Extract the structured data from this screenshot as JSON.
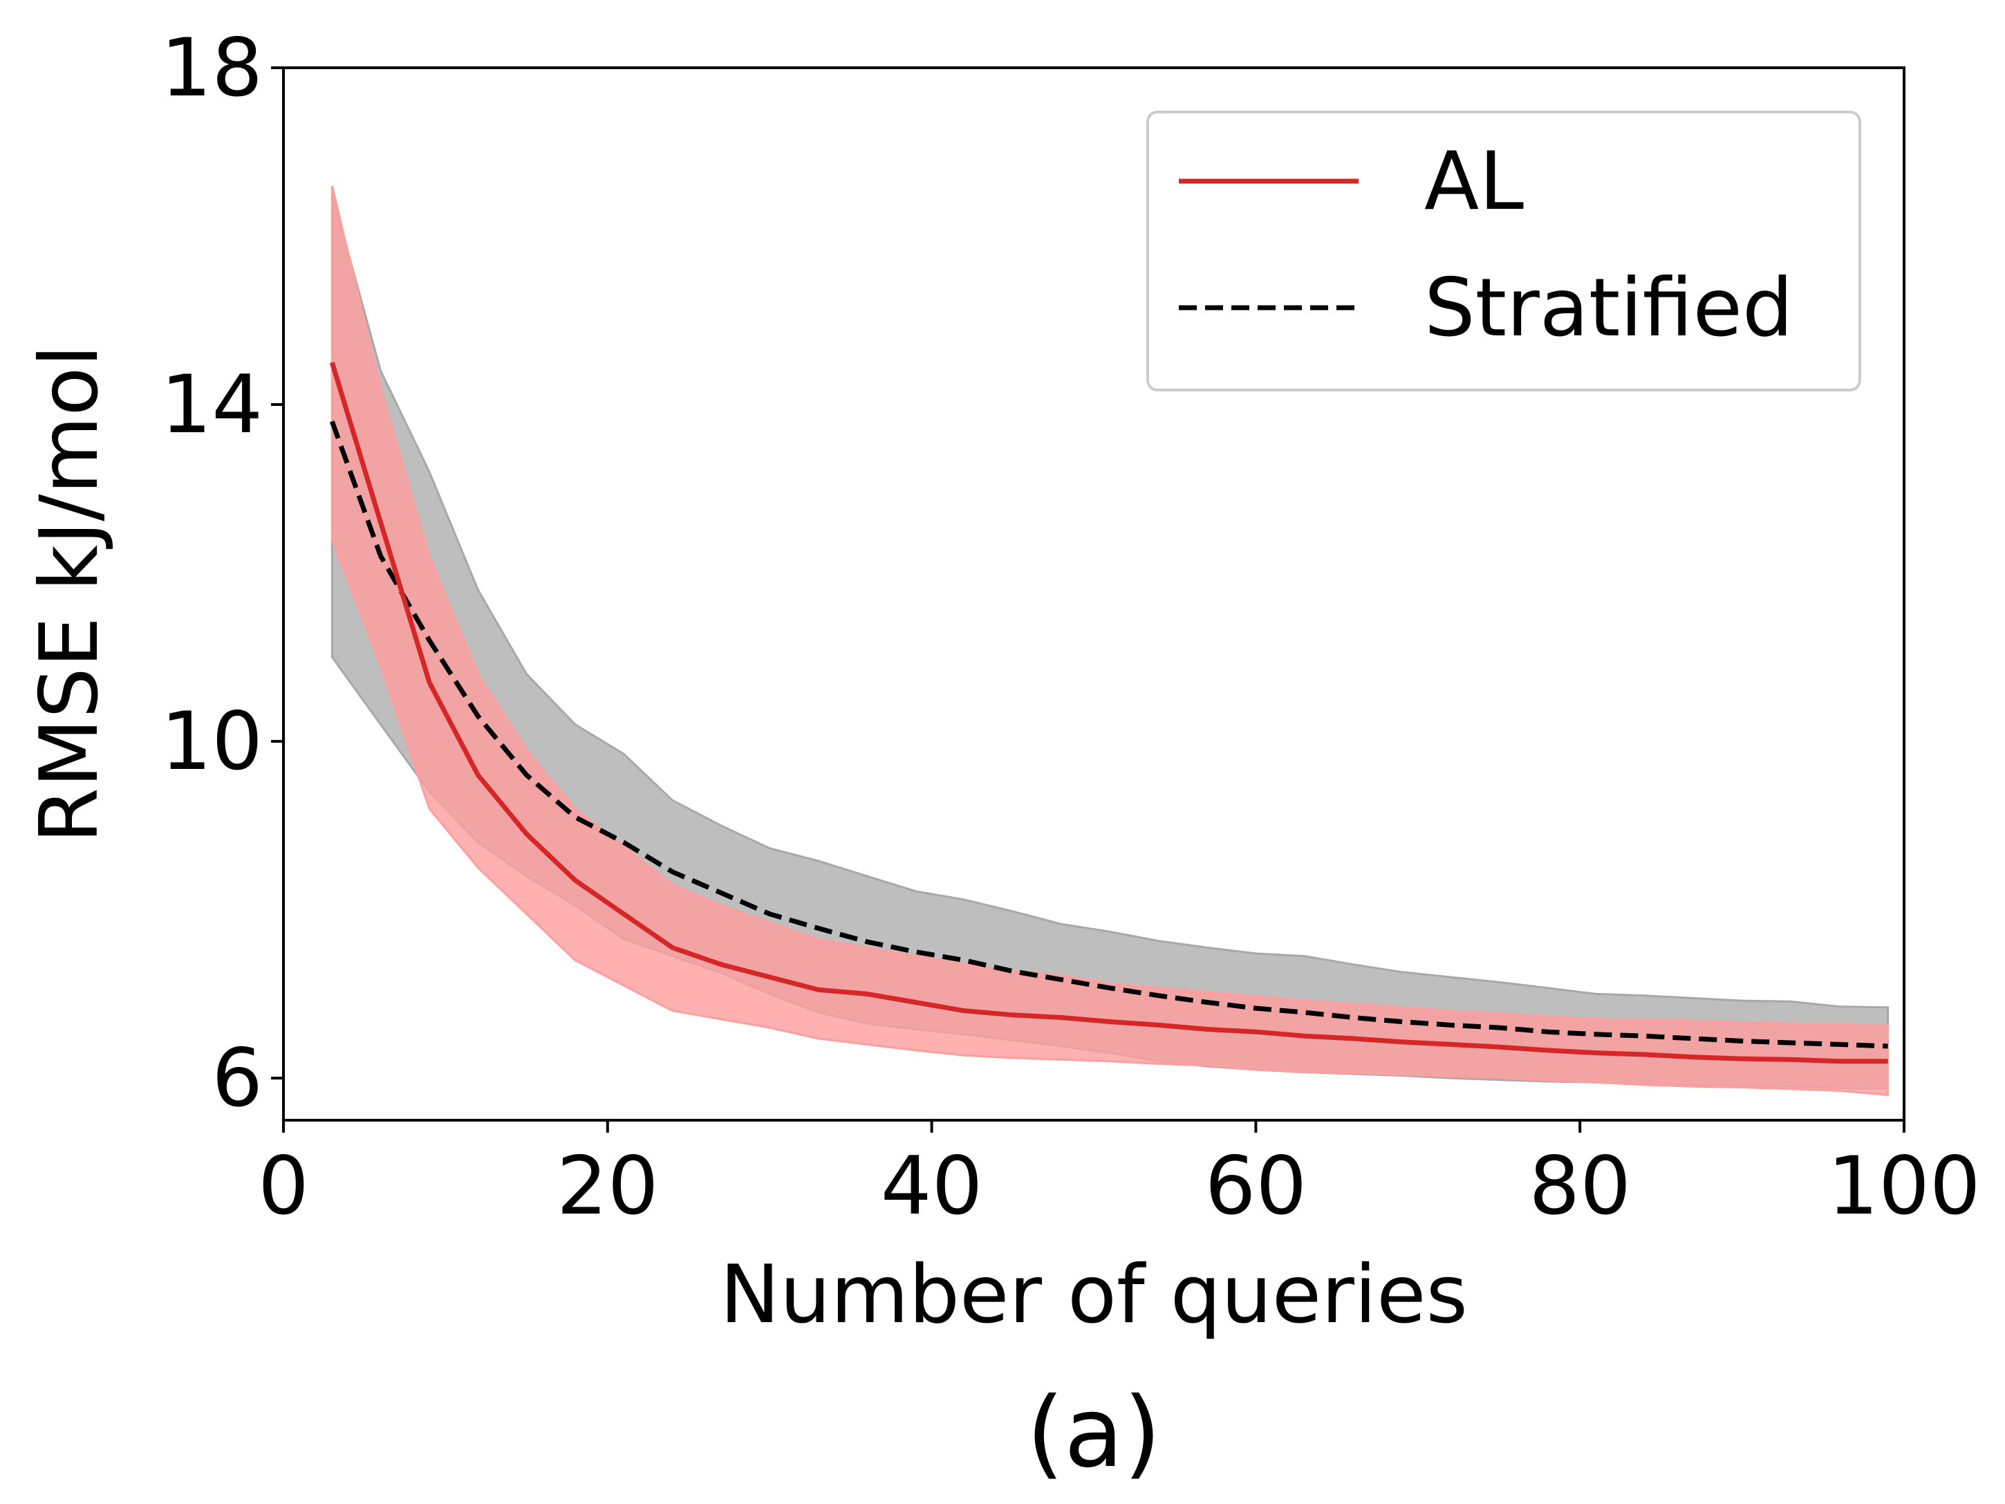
{
  "caption": "(a)",
  "chart_data": {
    "type": "line",
    "xlabel": "Number of queries",
    "ylabel": "RMSE kJ/mol",
    "xlim": [
      0,
      100
    ],
    "ylim": [
      5.5,
      18
    ],
    "xticks": [
      0,
      20,
      40,
      60,
      80,
      100
    ],
    "yticks": [
      6,
      10,
      14,
      18
    ],
    "grid": false,
    "legend_position": "top-right",
    "series": [
      {
        "name": "AL",
        "style": "solid",
        "color": "#d62728",
        "band_color": "#ff9e9e",
        "x": [
          3,
          6,
          9,
          12,
          15,
          18,
          21,
          24,
          27,
          30,
          33,
          36,
          39,
          42,
          45,
          48,
          51,
          54,
          57,
          60,
          63,
          66,
          69,
          72,
          75,
          78,
          81,
          84,
          87,
          90,
          93,
          96,
          99
        ],
        "y": [
          14.5,
          12.6,
          10.7,
          9.6,
          8.9,
          8.35,
          7.95,
          7.55,
          7.35,
          7.2,
          7.05,
          7.0,
          6.9,
          6.8,
          6.75,
          6.72,
          6.67,
          6.63,
          6.58,
          6.55,
          6.5,
          6.47,
          6.43,
          6.4,
          6.37,
          6.33,
          6.3,
          6.28,
          6.25,
          6.23,
          6.22,
          6.2,
          6.2
        ],
        "lower": [
          12.4,
          10.9,
          9.2,
          8.5,
          7.95,
          7.4,
          7.1,
          6.8,
          6.7,
          6.6,
          6.47,
          6.4,
          6.33,
          6.27,
          6.24,
          6.22,
          6.2,
          6.17,
          6.15,
          6.1,
          6.07,
          6.06,
          6.04,
          6.02,
          6.0,
          5.97,
          5.95,
          5.92,
          5.9,
          5.89,
          5.87,
          5.85,
          5.8
        ],
        "upper": [
          16.6,
          14.2,
          12.2,
          10.8,
          9.9,
          9.2,
          8.75,
          8.3,
          8.05,
          7.85,
          7.65,
          7.55,
          7.45,
          7.35,
          7.27,
          7.22,
          7.12,
          7.07,
          7.02,
          6.97,
          6.92,
          6.88,
          6.84,
          6.8,
          6.77,
          6.73,
          6.7,
          6.69,
          6.68,
          6.66,
          6.65,
          6.64,
          6.62
        ]
      },
      {
        "name": "Stratified",
        "style": "dashed",
        "color": "#000000",
        "band_color": "#a8a8a8",
        "x": [
          3,
          6,
          9,
          12,
          15,
          18,
          21,
          24,
          27,
          30,
          33,
          36,
          39,
          42,
          45,
          48,
          51,
          54,
          57,
          60,
          63,
          66,
          69,
          72,
          75,
          78,
          81,
          84,
          87,
          90,
          93,
          96,
          99
        ],
        "y": [
          13.8,
          12.2,
          11.2,
          10.3,
          9.6,
          9.1,
          8.8,
          8.45,
          8.2,
          7.95,
          7.78,
          7.62,
          7.5,
          7.4,
          7.27,
          7.17,
          7.07,
          6.98,
          6.9,
          6.83,
          6.78,
          6.72,
          6.67,
          6.63,
          6.6,
          6.55,
          6.52,
          6.5,
          6.47,
          6.44,
          6.42,
          6.4,
          6.38
        ],
        "lower": [
          11.0,
          10.2,
          9.4,
          8.8,
          8.4,
          8.05,
          7.65,
          7.45,
          7.25,
          7.0,
          6.78,
          6.65,
          6.58,
          6.52,
          6.45,
          6.38,
          6.3,
          6.2,
          6.14,
          6.1,
          6.07,
          6.05,
          6.03,
          6.0,
          5.98,
          5.96,
          5.95,
          5.93,
          5.92,
          5.91,
          5.9,
          5.88,
          5.87
        ],
        "upper": [
          16.5,
          14.4,
          13.2,
          11.8,
          10.8,
          10.2,
          9.85,
          9.3,
          9.0,
          8.73,
          8.58,
          8.4,
          8.22,
          8.12,
          7.98,
          7.83,
          7.74,
          7.63,
          7.55,
          7.48,
          7.45,
          7.35,
          7.26,
          7.2,
          7.14,
          7.07,
          7.0,
          6.98,
          6.95,
          6.92,
          6.91,
          6.85,
          6.84
        ]
      }
    ]
  }
}
